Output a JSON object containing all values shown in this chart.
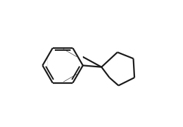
{
  "background_color": "#ffffff",
  "bond_color": "#1a1a1a",
  "line_width": 1.6,
  "figsize": [
    2.67,
    1.85
  ],
  "dpi": 100,
  "xlim": [
    0,
    267
  ],
  "ylim": [
    0,
    185
  ]
}
